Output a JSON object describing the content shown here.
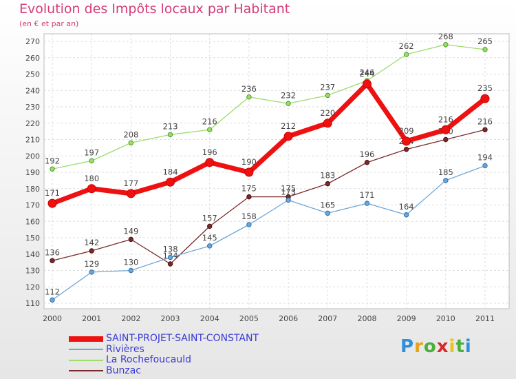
{
  "title": "Evolution des Impôts locaux par Habitant",
  "subtitle": "(en € et par an)",
  "logo": {
    "letters": [
      "P",
      "r",
      "o",
      "x",
      "i",
      "t",
      "i"
    ],
    "colors": [
      "#2f8fd8",
      "#e8a21a",
      "#4caf3a",
      "#d8282a",
      "#e8c51a",
      "#4caf3a",
      "#2f8fd8"
    ]
  },
  "chart_data": {
    "type": "line",
    "categories": [
      "2000",
      "2001",
      "2002",
      "2003",
      "2004",
      "2005",
      "2006",
      "2007",
      "2008",
      "2009",
      "2010",
      "2011"
    ],
    "ylim": [
      110,
      270
    ],
    "yticks": [
      110,
      120,
      130,
      140,
      150,
      160,
      170,
      180,
      190,
      200,
      210,
      220,
      230,
      240,
      250,
      260,
      270
    ],
    "series": [
      {
        "name": "SAINT-PROJET-SAINT-CONSTANT",
        "color": "#ee1111",
        "values": [
          171,
          180,
          177,
          184,
          196,
          190,
          212,
          220,
          244,
          209,
          216,
          235
        ]
      },
      {
        "name": "Rivières",
        "color": "#6fa6d6",
        "values": [
          112,
          129,
          130,
          138,
          145,
          158,
          173,
          165,
          171,
          164,
          185,
          194
        ]
      },
      {
        "name": "La Rochefoucauld",
        "color": "#9ddc6a",
        "values": [
          192,
          197,
          208,
          213,
          216,
          236,
          232,
          237,
          246,
          262,
          268,
          265
        ]
      },
      {
        "name": "Bunzac",
        "color": "#7a2a2a",
        "values": [
          136,
          142,
          149,
          134,
          157,
          175,
          175,
          183,
          196,
          204,
          210,
          216
        ]
      }
    ]
  }
}
